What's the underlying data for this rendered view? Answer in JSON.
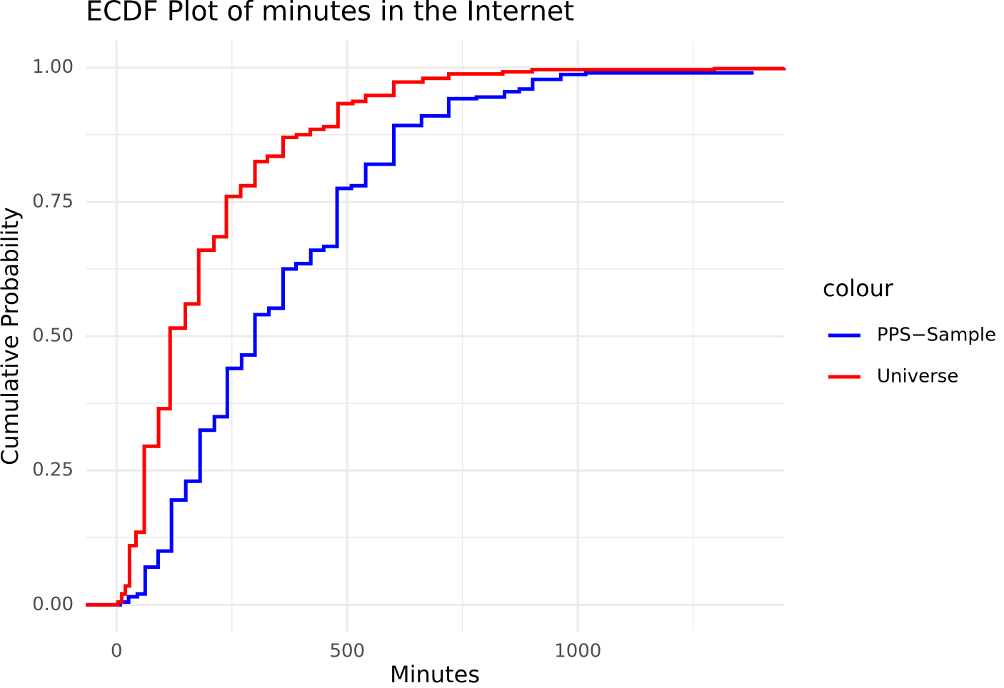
{
  "chart_data": {
    "type": "line",
    "title": "ECDF Plot of minutes in the Internet",
    "x_label": "Minutes",
    "y_label": "Cumulative Probability",
    "legend_title": "colour",
    "xlim": [
      -67,
      1447
    ],
    "ylim": [
      -0.05,
      1.05
    ],
    "xticks": [
      0,
      500,
      1000
    ],
    "yticks": [
      {
        "value": 0,
        "label": "0.00"
      },
      {
        "value": 0.25,
        "label": "0.25"
      },
      {
        "value": 0.5,
        "label": "0.50"
      },
      {
        "value": 0.75,
        "label": "0.75"
      },
      {
        "value": 1,
        "label": "1.00"
      }
    ],
    "grid": true,
    "step": true,
    "series": [
      {
        "name": "PPS−Sample",
        "color": "#0000ff",
        "x": [
          -67,
          8,
          26,
          45,
          62,
          90,
          119,
          150,
          181,
          212,
          240,
          271,
          300,
          330,
          361,
          389,
          421,
          449,
          478,
          509,
          540,
          601,
          661,
          720,
          780,
          841,
          873,
          902,
          963,
          1017,
          1381
        ],
        "values": [
          0,
          0.005,
          0.015,
          0.02,
          0.07,
          0.1,
          0.195,
          0.23,
          0.325,
          0.35,
          0.44,
          0.465,
          0.54,
          0.552,
          0.625,
          0.635,
          0.66,
          0.667,
          0.775,
          0.78,
          0.82,
          0.892,
          0.91,
          0.942,
          0.945,
          0.955,
          0.96,
          0.978,
          0.987,
          0.99,
          0.99
        ]
      },
      {
        "name": "Universe",
        "color": "#ff0000",
        "x": [
          -67,
          3,
          11,
          19,
          28,
          42,
          60,
          91,
          116,
          149,
          178,
          211,
          238,
          269,
          300,
          327,
          361,
          390,
          420,
          449,
          480,
          512,
          540,
          601,
          664,
          720,
          837,
          901,
          1296,
          1447
        ],
        "values": [
          0,
          0.005,
          0.02,
          0.035,
          0.11,
          0.135,
          0.295,
          0.365,
          0.515,
          0.56,
          0.66,
          0.685,
          0.76,
          0.78,
          0.825,
          0.835,
          0.87,
          0.875,
          0.885,
          0.89,
          0.933,
          0.937,
          0.948,
          0.973,
          0.98,
          0.988,
          0.992,
          0.996,
          0.998,
          1
        ]
      }
    ]
  }
}
